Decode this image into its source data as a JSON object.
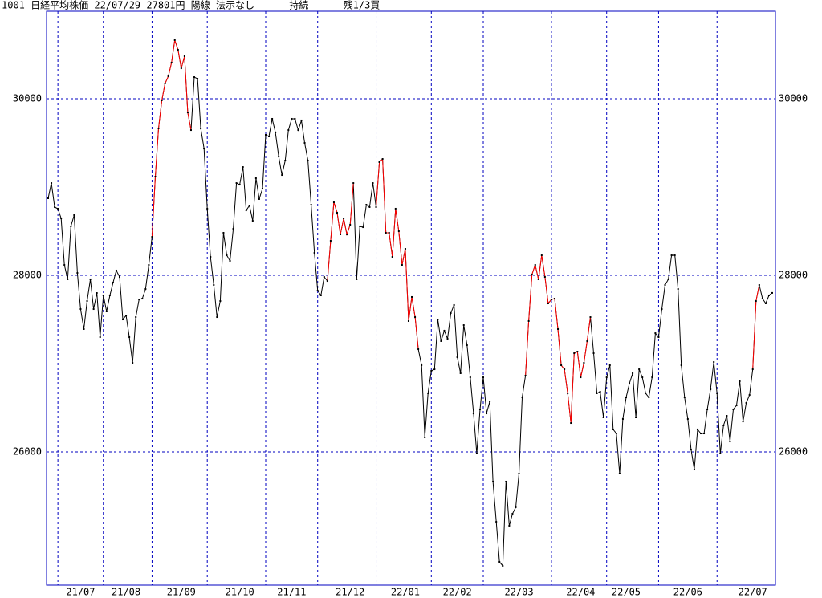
{
  "chart_data": {
    "type": "line",
    "title": "1001 日経平均株価 22/07/29 27801円 陽線 法示なし      持続      残1/3買",
    "ylim": [
      24491,
      30991
    ],
    "yticks": [
      26000,
      28000,
      30000
    ],
    "xlim": [
      0,
      223
    ],
    "xticks": [
      {
        "value": 10,
        "label": "21/07"
      },
      {
        "value": 24,
        "label": "21/08"
      },
      {
        "value": 41,
        "label": "21/09"
      },
      {
        "value": 59,
        "label": "21/10"
      },
      {
        "value": 75,
        "label": "21/11"
      },
      {
        "value": 93,
        "label": "21/12"
      },
      {
        "value": 110,
        "label": "22/01"
      },
      {
        "value": 126,
        "label": "22/02"
      },
      {
        "value": 145,
        "label": "22/03"
      },
      {
        "value": 164,
        "label": "22/04"
      },
      {
        "value": 178,
        "label": "22/05"
      },
      {
        "value": 197,
        "label": "22/06"
      },
      {
        "value": 217,
        "label": "22/07"
      }
    ],
    "xgrid": [
      3,
      17,
      32,
      49,
      67,
      83,
      101,
      118,
      134,
      155,
      172,
      188,
      206
    ],
    "grid": true,
    "grid_color": "#0000c0",
    "series": [
      {
        "color": "#000000",
        "values": [
          28873,
          29045,
          28773,
          28755,
          28645,
          28118,
          27955,
          28555,
          28682,
          28027,
          27618,
          27391,
          27709,
          27955,
          27618,
          27800,
          27300,
          27773,
          27591,
          27773,
          27918,
          28055,
          27982,
          27500,
          27545,
          27300,
          27009,
          27527,
          27727,
          27736,
          27845,
          28118,
          28436,
          29118,
          29664,
          29982,
          30173,
          30255,
          30409,
          30664,
          30555,
          30345,
          30482,
          29845,
          29645,
          30245,
          30227,
          29664,
          29436,
          28755,
          28209,
          27891,
          27527,
          27709,
          28482,
          28227,
          28164,
          28527,
          29045,
          29027,
          29227,
          28736,
          28791,
          28618,
          29100,
          28864,
          28982,
          29591,
          29573,
          29773,
          29618,
          29345,
          29136,
          29300,
          29645,
          29773,
          29773,
          29645,
          29755,
          29500,
          29300,
          28800,
          28255,
          27827,
          27773,
          27982,
          27936,
          28391,
          28827,
          28709,
          28464,
          28645,
          28464,
          28573,
          29045,
          27955,
          28555,
          28545,
          28800,
          28773,
          29045,
          28773,
          29282,
          29318,
          28482,
          28482,
          28209,
          28755,
          28500,
          28118,
          28300,
          27482,
          27755,
          27527,
          27164,
          26982,
          26164,
          26664,
          26918,
          26936,
          27500,
          27255,
          27373,
          27282,
          27573,
          27664,
          27073,
          26891,
          27436,
          27209,
          26845,
          26436,
          25982,
          26482,
          26845,
          26436,
          26573,
          25664,
          25209,
          24755,
          24709,
          25664,
          25164,
          25300,
          25373,
          25755,
          26618,
          26864,
          27482,
          28009,
          28118,
          27955,
          28227,
          27982,
          27682,
          27727,
          27736,
          27391,
          26982,
          26936,
          26664,
          26327,
          27118,
          27136,
          26845,
          27009,
          27255,
          27527,
          27118,
          26664,
          26682,
          26391,
          26845,
          26982,
          26255,
          26209,
          25755,
          26373,
          26618,
          26773,
          26891,
          26391,
          26936,
          26845,
          26664,
          26618,
          26845,
          27345,
          27300,
          27618,
          27891,
          27955,
          28227,
          28227,
          27845,
          26982,
          26618,
          26373,
          26027,
          25800,
          26255,
          26209,
          26209,
          26482,
          26709,
          27018,
          26664,
          25982,
          26300,
          26409,
          26118,
          26482,
          26527,
          26800,
          26345,
          26555,
          26645,
          26936,
          27709,
          27891,
          27736,
          27682,
          27773,
          27801
        ]
      }
    ],
    "highlight": {
      "color": "#ff0000",
      "ranges": [
        [
          32,
          44
        ],
        [
          86,
          94
        ],
        [
          101,
          114
        ],
        [
          147,
          167
        ],
        [
          217,
          219
        ]
      ]
    }
  }
}
